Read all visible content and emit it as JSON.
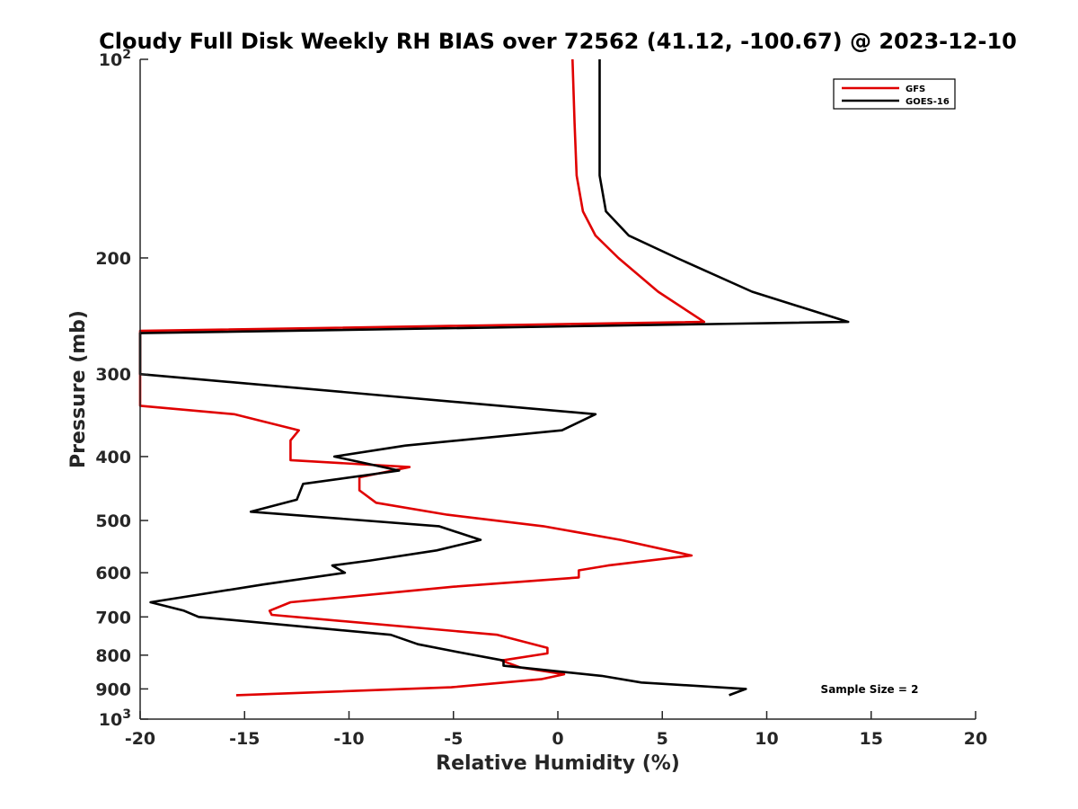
{
  "chart_data": {
    "type": "line",
    "title": "Cloudy Full Disk Weekly RH BIAS over 72562 (41.12, -100.67) @ 2023-12-10",
    "xlabel": "Relative Humidity (%)",
    "ylabel": "Pressure (mb)",
    "xlim": [
      -20,
      20
    ],
    "ylim": [
      100,
      1000
    ],
    "yscale": "log",
    "y_reversed": true,
    "grid": false,
    "legend_position": "top-right",
    "x_ticks": [
      "-20",
      "-15",
      "-10",
      "-5",
      "0",
      "5",
      "10",
      "15",
      "20"
    ],
    "x_tick_values": [
      -20,
      -15,
      -10,
      -5,
      0,
      5,
      10,
      15,
      20
    ],
    "y_ticks": [
      {
        "value": 100,
        "base": "10",
        "exp": "2"
      },
      {
        "value": 200,
        "label": "200"
      },
      {
        "value": 300,
        "label": "300"
      },
      {
        "value": 400,
        "label": "400"
      },
      {
        "value": 500,
        "label": "500"
      },
      {
        "value": 600,
        "label": "600"
      },
      {
        "value": 700,
        "label": "700"
      },
      {
        "value": 800,
        "label": "800"
      },
      {
        "value": 900,
        "label": "900"
      },
      {
        "value": 1000,
        "base": "10",
        "exp": "3"
      }
    ],
    "series": [
      {
        "name": "GFS",
        "color": "#e00000",
        "points": [
          [
            0.7,
            100
          ],
          [
            0.8,
            125
          ],
          [
            0.9,
            150
          ],
          [
            1.2,
            170
          ],
          [
            1.8,
            185
          ],
          [
            2.9,
            200
          ],
          [
            4.8,
            225
          ],
          [
            7.0,
            250
          ],
          [
            -20.0,
            258
          ],
          [
            -20.0,
            335
          ],
          [
            -15.5,
            345
          ],
          [
            -12.4,
            365
          ],
          [
            -12.8,
            378
          ],
          [
            -12.8,
            405
          ],
          [
            -7.1,
            415
          ],
          [
            -9.5,
            430
          ],
          [
            -9.5,
            450
          ],
          [
            -8.7,
            470
          ],
          [
            -5.3,
            490
          ],
          [
            -0.7,
            510
          ],
          [
            3.0,
            535
          ],
          [
            6.4,
            565
          ],
          [
            2.4,
            585
          ],
          [
            1.0,
            595
          ],
          [
            1.0,
            610
          ],
          [
            -5.0,
            630
          ],
          [
            -12.8,
            665
          ],
          [
            -13.8,
            685
          ],
          [
            -13.7,
            695
          ],
          [
            -2.9,
            745
          ],
          [
            -0.5,
            780
          ],
          [
            -0.5,
            795
          ],
          [
            -2.7,
            815
          ],
          [
            -1.8,
            835
          ],
          [
            0.3,
            855
          ],
          [
            -0.8,
            870
          ],
          [
            -5.1,
            895
          ],
          [
            -15.4,
            920
          ]
        ]
      },
      {
        "name": "GOES-16",
        "color": "#000000",
        "points": [
          [
            2.0,
            100
          ],
          [
            2.0,
            125
          ],
          [
            2.0,
            150
          ],
          [
            2.3,
            170
          ],
          [
            3.4,
            185
          ],
          [
            5.7,
            200
          ],
          [
            9.3,
            225
          ],
          [
            13.9,
            250
          ],
          [
            -20.0,
            260
          ],
          [
            -20.0,
            300
          ],
          [
            1.8,
            345
          ],
          [
            0.2,
            365
          ],
          [
            -7.3,
            385
          ],
          [
            -10.7,
            400
          ],
          [
            -7.6,
            420
          ],
          [
            -12.2,
            440
          ],
          [
            -12.5,
            465
          ],
          [
            -14.7,
            485
          ],
          [
            -5.7,
            510
          ],
          [
            -3.7,
            535
          ],
          [
            -5.8,
            555
          ],
          [
            -9.0,
            575
          ],
          [
            -10.8,
            585
          ],
          [
            -10.2,
            600
          ],
          [
            -14.1,
            625
          ],
          [
            -19.5,
            665
          ],
          [
            -17.9,
            685
          ],
          [
            -17.2,
            700
          ],
          [
            -8.0,
            745
          ],
          [
            -6.7,
            770
          ],
          [
            -4.9,
            790
          ],
          [
            -2.6,
            815
          ],
          [
            -2.6,
            830
          ],
          [
            2.1,
            860
          ],
          [
            4.0,
            880
          ],
          [
            9.0,
            900
          ],
          [
            8.2,
            920
          ]
        ]
      }
    ],
    "annotation": "Sample Size = 2"
  }
}
